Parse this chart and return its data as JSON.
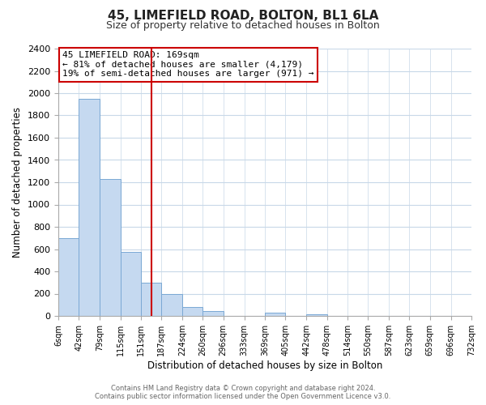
{
  "title": "45, LIMEFIELD ROAD, BOLTON, BL1 6LA",
  "subtitle": "Size of property relative to detached houses in Bolton",
  "xlabel": "Distribution of detached houses by size in Bolton",
  "ylabel": "Number of detached properties",
  "bar_edges": [
    6,
    42,
    79,
    115,
    151,
    187,
    224,
    260,
    296,
    333,
    369,
    405,
    442,
    478,
    514,
    550,
    587,
    623,
    659,
    696,
    732
  ],
  "bar_heights": [
    700,
    1950,
    1230,
    575,
    300,
    200,
    80,
    45,
    0,
    0,
    30,
    0,
    15,
    0,
    0,
    0,
    0,
    0,
    0,
    0
  ],
  "bar_color": "#c5d9f0",
  "bar_edgecolor": "#7aa8d4",
  "property_line_x": 169,
  "property_line_color": "#cc0000",
  "ylim": [
    0,
    2400
  ],
  "yticks": [
    0,
    200,
    400,
    600,
    800,
    1000,
    1200,
    1400,
    1600,
    1800,
    2000,
    2200,
    2400
  ],
  "annotation_title": "45 LIMEFIELD ROAD: 169sqm",
  "annotation_line1": "← 81% of detached houses are smaller (4,179)",
  "annotation_line2": "19% of semi-detached houses are larger (971) →",
  "annotation_box_color": "#ffffff",
  "annotation_box_edgecolor": "#cc0000",
  "footer_line1": "Contains HM Land Registry data © Crown copyright and database right 2024.",
  "footer_line2": "Contains public sector information licensed under the Open Government Licence v3.0.",
  "background_color": "#ffffff",
  "grid_color": "#c8d8e8"
}
